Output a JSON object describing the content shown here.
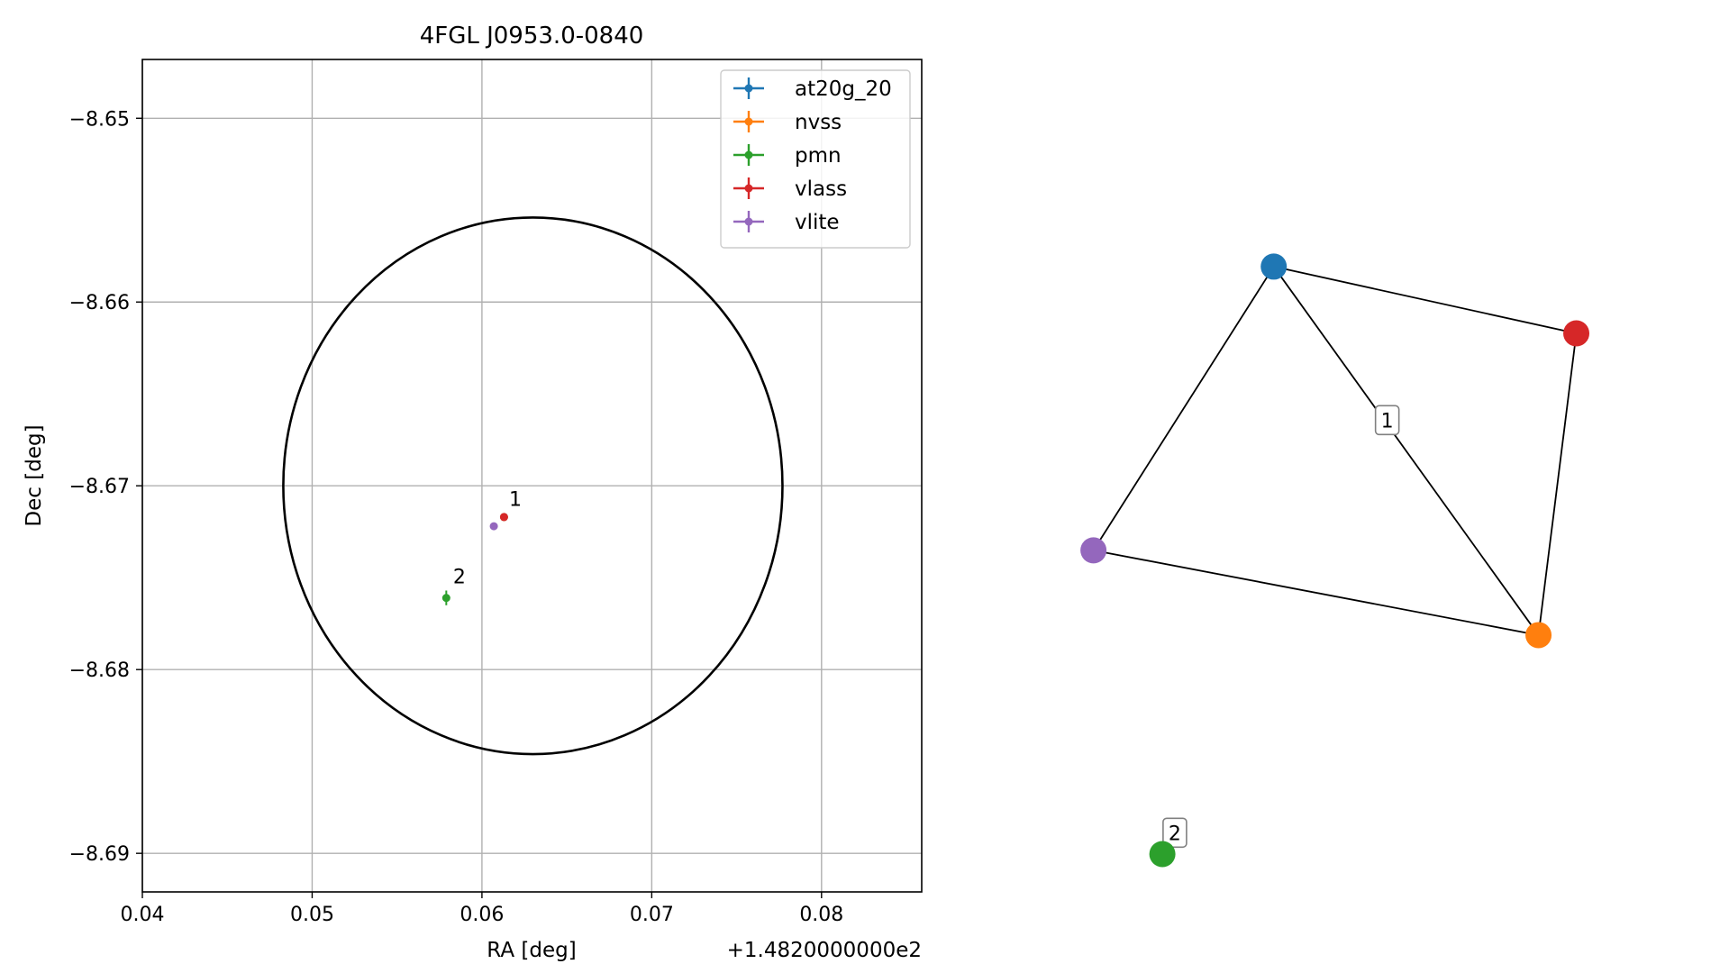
{
  "chart_data": [
    {
      "type": "scatter",
      "title": "4FGL J0953.0-0840",
      "xlabel": "RA [deg]",
      "ylabel": "Dec [deg]",
      "x_offset_label": "+1.4820000000e2",
      "xlim": [
        0.04,
        0.0859
      ],
      "ylim": [
        -8.6921,
        -8.6468
      ],
      "x_ticks": [
        0.04,
        0.05,
        0.06,
        0.07,
        0.08
      ],
      "x_tick_labels": [
        "0.04",
        "0.05",
        "0.06",
        "0.07",
        "0.08"
      ],
      "y_ticks": [
        -8.65,
        -8.66,
        -8.67,
        -8.68,
        -8.69
      ],
      "y_tick_labels": [
        "−8.65",
        "−8.66",
        "−8.67",
        "−8.68",
        "−8.69"
      ],
      "grid": true,
      "legend_position": "top-right",
      "series": [
        {
          "name": "at20g_20",
          "color": "#1f77b4",
          "points": [
            {
              "x": 0.0613,
              "y": -8.6717,
              "xerr": 0.0002,
              "yerr": 0.0001
            }
          ]
        },
        {
          "name": "nvss",
          "color": "#ff7f0e",
          "points": [
            {
              "x": 0.0613,
              "y": -8.6717,
              "xerr": 0.0002,
              "yerr": 0.0001
            }
          ]
        },
        {
          "name": "pmn",
          "color": "#2ca02c",
          "points": [
            {
              "x": 0.0579,
              "y": -8.6761,
              "xerr": 0.0002,
              "yerr": 0.0004
            }
          ]
        },
        {
          "name": "vlass",
          "color": "#d62728",
          "points": [
            {
              "x": 0.0613,
              "y": -8.6717,
              "xerr": 0.0002,
              "yerr": 0.0002
            }
          ]
        },
        {
          "name": "vlite",
          "color": "#9467bd",
          "points": [
            {
              "x": 0.0607,
              "y": -8.6722,
              "xerr": 0.0001,
              "yerr": 0.0001
            }
          ]
        }
      ],
      "ellipse": {
        "cx": 0.063,
        "cy": -8.67,
        "rx": 0.0147,
        "ry": 0.0146,
        "color": "#000000"
      },
      "annotations": [
        {
          "text": "1",
          "x": 0.0616,
          "y": -8.6711
        },
        {
          "text": "2",
          "x": 0.0583,
          "y": -8.6753
        }
      ]
    },
    {
      "type": "network",
      "nodes": [
        {
          "id": "at20g_20",
          "color": "#1f77b4",
          "x": 0.363,
          "y": 0.88
        },
        {
          "id": "vlass",
          "color": "#d62728",
          "x": 0.947,
          "y": 0.78
        },
        {
          "id": "vlite",
          "color": "#9467bd",
          "x": 0.015,
          "y": 0.455
        },
        {
          "id": "nvss",
          "color": "#ff7f0e",
          "x": 0.874,
          "y": 0.328
        },
        {
          "id": "pmn",
          "color": "#2ca02c",
          "x": 0.148,
          "y": 0.0
        }
      ],
      "edges": [
        [
          "at20g_20",
          "vlass"
        ],
        [
          "at20g_20",
          "vlite"
        ],
        [
          "at20g_20",
          "nvss"
        ],
        [
          "vlass",
          "nvss"
        ],
        [
          "vlite",
          "nvss"
        ]
      ],
      "labels": [
        {
          "text": "1",
          "x": 0.582,
          "y": 0.65
        },
        {
          "text": "2",
          "x": 0.172,
          "y": 0.032
        }
      ]
    }
  ]
}
